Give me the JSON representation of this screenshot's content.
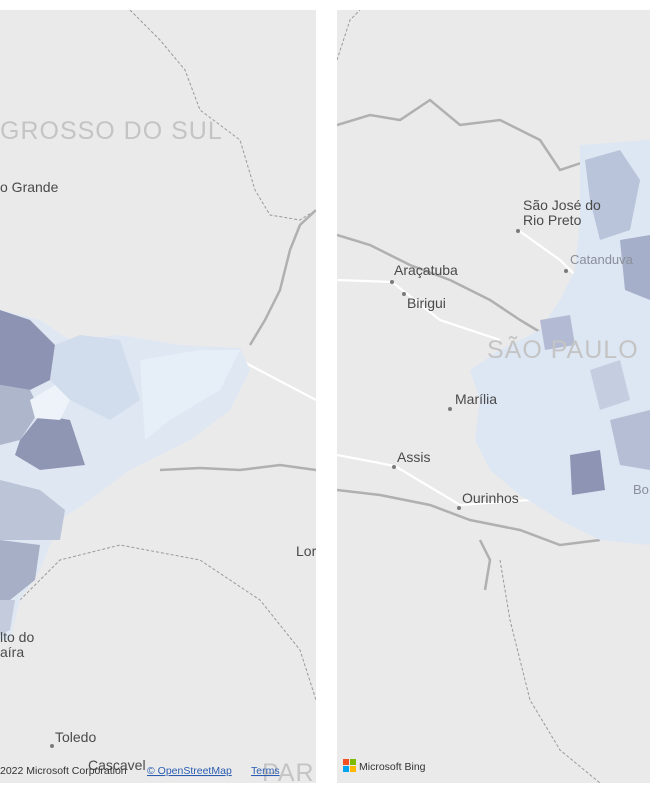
{
  "left_map": {
    "region_label": "GROSSO DO SUL",
    "region_label_bottom": "PAR",
    "cities": [
      "o Grande",
      "Lor",
      "lto do",
      "aíra",
      "Toledo",
      "Cascavel"
    ],
    "attribution": {
      "copyright": "2022 Microsoft Corporation",
      "osm": "© OpenStreetMap",
      "terms": "Terms"
    }
  },
  "right_map": {
    "region_label": "SÃO PAULO",
    "cities": [
      "São José do",
      "Rio Preto",
      "Catanduva",
      "Araçatuba",
      "Birigui",
      "Marília",
      "Assis",
      "Ourinhos",
      "Bo"
    ],
    "logo": "Microsoft Bing"
  }
}
